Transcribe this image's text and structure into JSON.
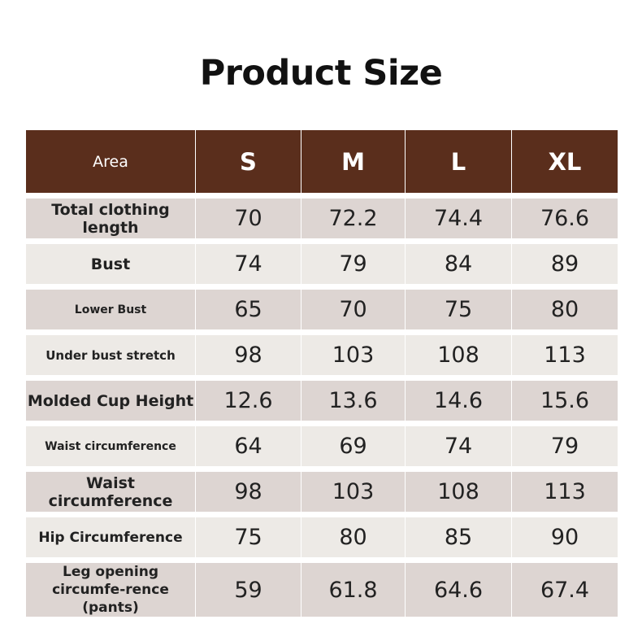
{
  "title": "Product Size",
  "header": {
    "area": "Area",
    "sizes": [
      "S",
      "M",
      "L",
      "XL"
    ]
  },
  "rows": [
    {
      "area": "Total clothing length",
      "values": [
        "70",
        "72.2",
        "74.4",
        "76.6"
      ]
    },
    {
      "area": "Bust",
      "values": [
        "74",
        "79",
        "84",
        "89"
      ]
    },
    {
      "area": "Lower Bust",
      "values": [
        "65",
        "70",
        "75",
        "80"
      ]
    },
    {
      "area": "Under bust stretch",
      "values": [
        "98",
        "103",
        "108",
        "113"
      ]
    },
    {
      "area": "Molded Cup Height",
      "values": [
        "12.6",
        "13.6",
        "14.6",
        "15.6"
      ]
    },
    {
      "area": "Waist circumference",
      "values": [
        "64",
        "69",
        "74",
        "79"
      ]
    },
    {
      "area": "Waist circumference",
      "values": [
        "98",
        "103",
        "108",
        "113"
      ]
    },
    {
      "area": "Hip Circumference",
      "values": [
        "75",
        "80",
        "85",
        "90"
      ]
    },
    {
      "area": "Leg opening circumfe-rence (pants)",
      "values": [
        "59",
        "61.8",
        "64.6",
        "67.4"
      ]
    }
  ],
  "colors": {
    "header_bg": "#5a2e1c",
    "row_dark": "#ddd5d2",
    "row_light": "#edeae6"
  }
}
